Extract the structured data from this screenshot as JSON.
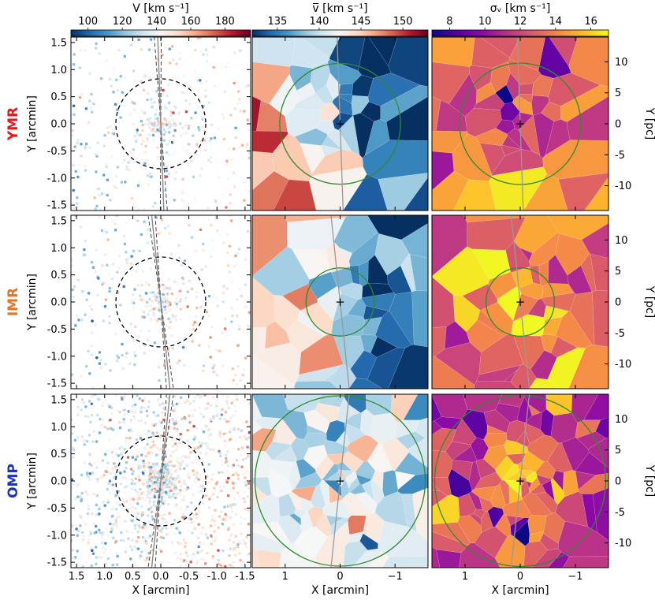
{
  "chart_data": {
    "type": "scatter",
    "colorbars": [
      {
        "label": "V [km s⁻¹]",
        "ticks": [
          "100",
          "120",
          "140",
          "160",
          "180"
        ],
        "range": [
          90,
          195
        ],
        "cmap": "RdBu_r"
      },
      {
        "label": "v̅ [km s⁻¹]",
        "ticks": [
          "135",
          "140",
          "145",
          "150"
        ],
        "range": [
          132,
          153
        ],
        "cmap": "RdBu_r"
      },
      {
        "label": "σᵥ [km s⁻¹]",
        "ticks": [
          "8",
          "10",
          "12",
          "14",
          "16"
        ],
        "range": [
          7,
          17
        ],
        "cmap": "plasma"
      }
    ],
    "rows": [
      {
        "label": "YMR",
        "color": "#e8161f",
        "fov_circle_arcmin": 0.8,
        "green_circle_arcmin": 1.1
      },
      {
        "label": "IMR",
        "color": "#ea7320",
        "fov_circle_arcmin": 0.8,
        "green_circle_arcmin": 0.62
      },
      {
        "label": "OMP",
        "color": "#1a32c8",
        "fov_circle_arcmin": 0.8,
        "green_circle_arcmin": 1.55
      }
    ],
    "panel_a": {
      "xlabel": "X [arcmin]",
      "ylabel": "Y [arcmin]",
      "xlim": [
        1.6,
        -1.6
      ],
      "ylim": [
        -1.6,
        1.6
      ],
      "xticks": [
        "1.5",
        "1.0",
        "0.5",
        "0.0",
        "-0.5",
        "-1.0",
        "-1.5"
      ],
      "yticks": [
        "-1.5",
        "-1.0",
        "-0.5",
        "0.0",
        "0.5",
        "1.0",
        "1.5"
      ]
    },
    "panel_b": {
      "xlabel": "X [arcmin]",
      "xticks": [
        "1",
        "0",
        "−1"
      ],
      "ylabel_right": "Y [pc]",
      "yticks_right": [
        "-10",
        "-5",
        "0",
        "5",
        "10"
      ]
    },
    "rotation_axis_angle_deg": [
      -2,
      -6,
      6
    ]
  }
}
